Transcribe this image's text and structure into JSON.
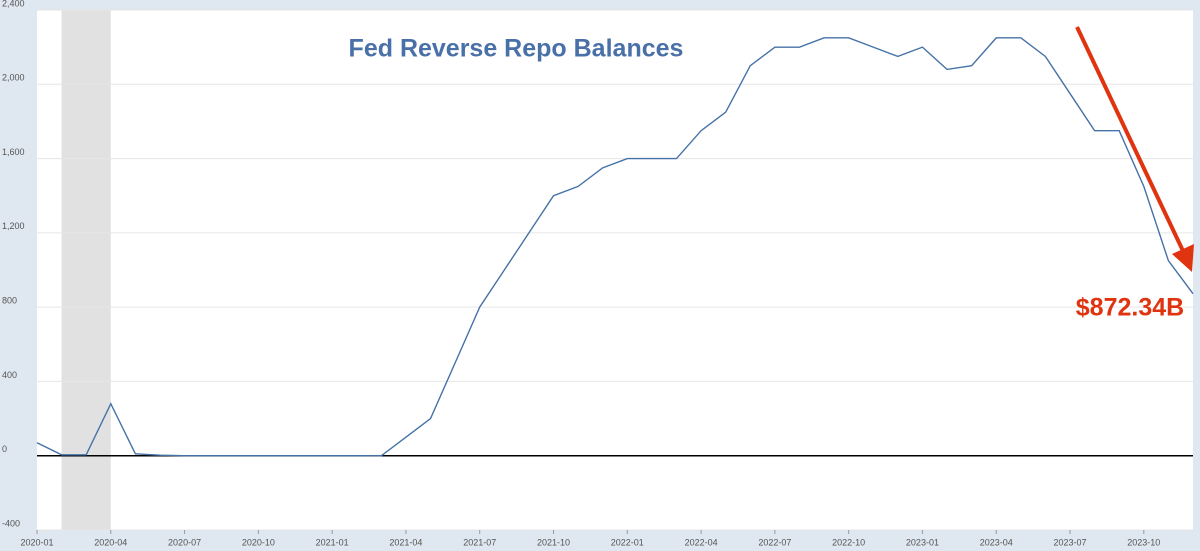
{
  "chart_data": {
    "type": "line",
    "title": "Fed Reverse Repo Balances",
    "annotation": "$872.34B",
    "annotation_color": "#e0330f",
    "title_color": "#4a70a8",
    "shade": {
      "start": "2020-02",
      "end": "2020-04",
      "color": "#e1e1e1"
    },
    "x": [
      "2020-01",
      "2020-02",
      "2020-03",
      "2020-04",
      "2020-05",
      "2020-06",
      "2020-07",
      "2020-08",
      "2020-09",
      "2020-10",
      "2020-11",
      "2020-12",
      "2021-01",
      "2021-02",
      "2021-03",
      "2021-04",
      "2021-05",
      "2021-06",
      "2021-07",
      "2021-08",
      "2021-09",
      "2021-10",
      "2021-11",
      "2021-12",
      "2022-01",
      "2022-02",
      "2022-03",
      "2022-04",
      "2022-05",
      "2022-06",
      "2022-07",
      "2022-08",
      "2022-09",
      "2022-10",
      "2022-11",
      "2022-12",
      "2023-01",
      "2023-02",
      "2023-03",
      "2023-04",
      "2023-05",
      "2023-06",
      "2023-07",
      "2023-08",
      "2023-09",
      "2023-10",
      "2023-11",
      "2023-12"
    ],
    "series": [
      {
        "name": "Fed Reverse Repo Balances",
        "color": "#4572a7",
        "values": [
          70,
          5,
          5,
          280,
          10,
          3,
          0,
          0,
          0,
          0,
          0,
          0,
          0,
          0,
          0,
          100,
          200,
          500,
          800,
          1000,
          1200,
          1400,
          1450,
          1550,
          1600,
          1600,
          1600,
          1750,
          1850,
          2100,
          2200,
          2200,
          2250,
          2250,
          2200,
          2150,
          2200,
          2080,
          2100,
          2250,
          2250,
          2150,
          1950,
          1750,
          1750,
          1450,
          1050,
          872.34
        ]
      }
    ],
    "xlim": [
      "2020-01",
      "2023-12"
    ],
    "xticks": [
      "2020-01",
      "2020-04",
      "2020-07",
      "2020-10",
      "2021-01",
      "2021-04",
      "2021-07",
      "2021-10",
      "2022-01",
      "2022-04",
      "2022-07",
      "2022-10",
      "2023-01",
      "2023-04",
      "2023-07",
      "2023-10"
    ],
    "ylim": [
      -400,
      2400
    ],
    "yticks": [
      -400,
      0,
      400,
      800,
      {
        "value": 1200,
        "label": "1,200"
      },
      {
        "value": 1600,
        "label": "1,600"
      },
      {
        "value": 2000,
        "label": "2,000"
      },
      {
        "value": 2400,
        "label": "2,400"
      }
    ],
    "grid": true
  }
}
